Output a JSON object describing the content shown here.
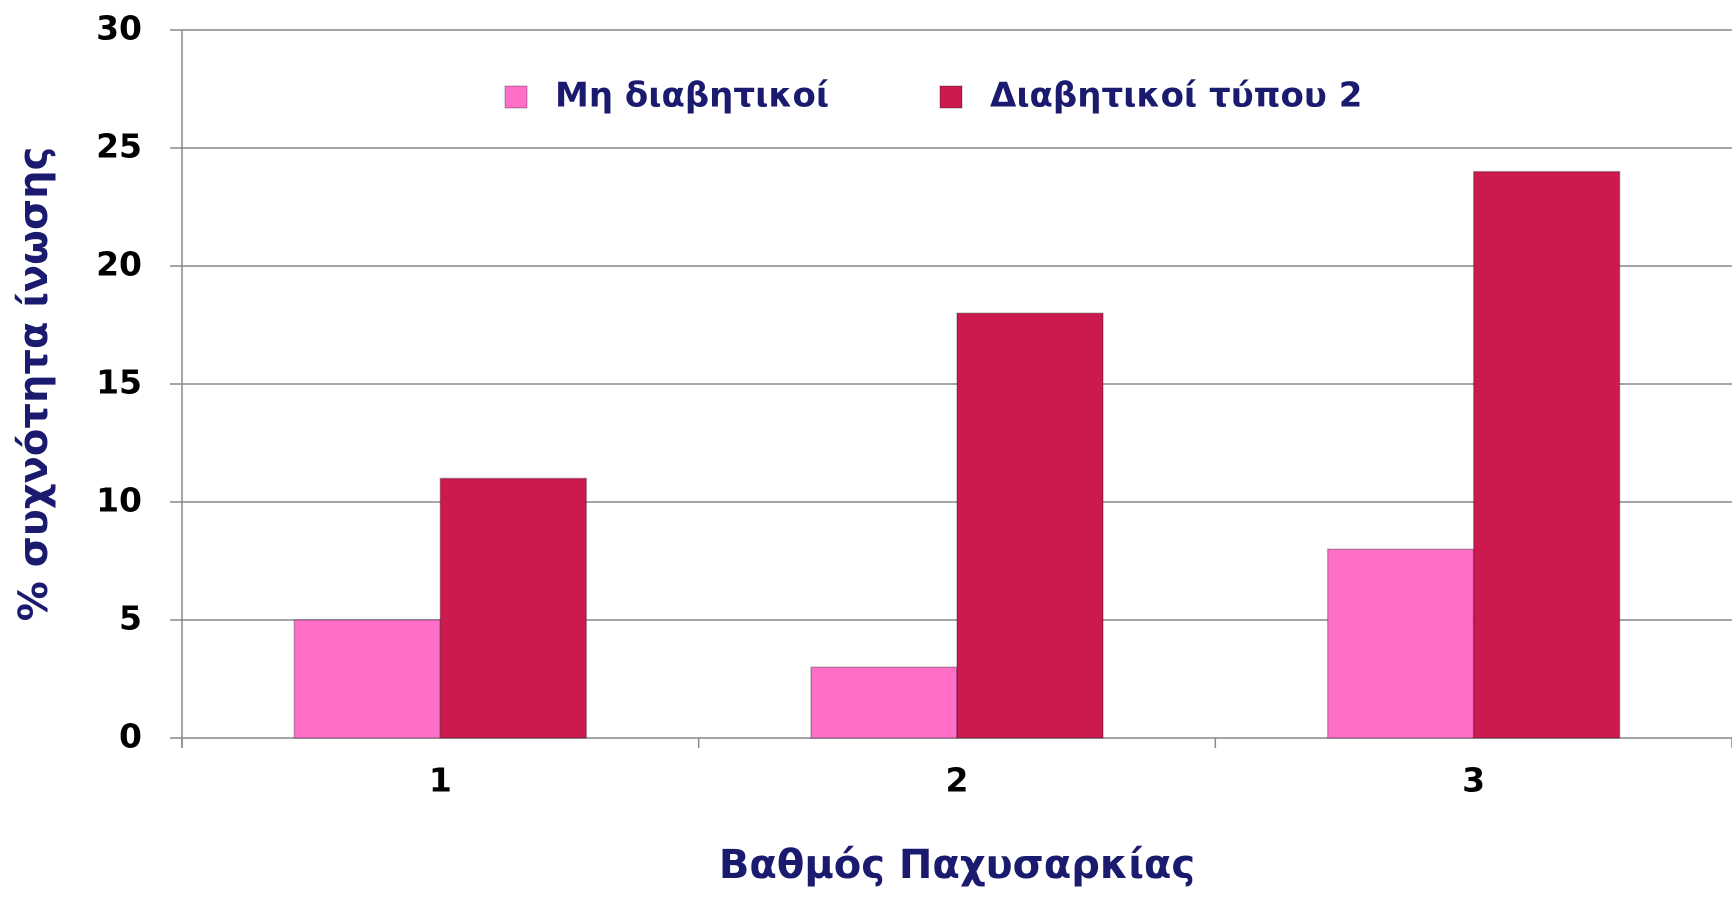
{
  "chart_data": {
    "type": "bar",
    "x_label": "Βαθμός Παχυσαρκίας",
    "y_label": "% συχνότητα ίνωσης",
    "categories": [
      "1",
      "2",
      "3"
    ],
    "series": [
      {
        "name": "Μη διαβητικοί",
        "color": "#ff6ec7",
        "values": [
          5,
          3,
          8
        ]
      },
      {
        "name": "Διαβητικοί τύπου 2",
        "color": "#cc1a4f",
        "values": [
          11,
          18,
          24
        ]
      }
    ],
    "ylim": [
      0,
      30
    ],
    "yticks": [
      0,
      5,
      10,
      15,
      20,
      25,
      30
    ],
    "grid": true,
    "legend": "top"
  }
}
